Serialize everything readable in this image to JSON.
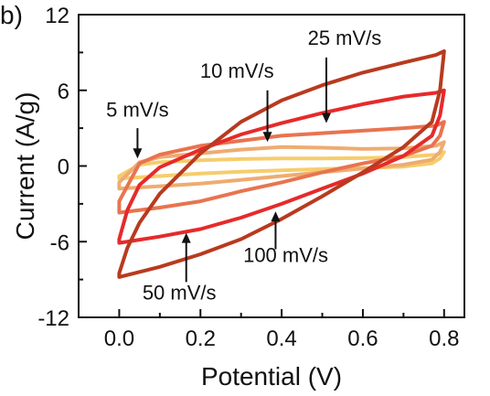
{
  "chart_data": {
    "type": "line",
    "panel_label": "b)",
    "xlabel": "Potential (V)",
    "ylabel": "Current (A/g)",
    "xlim": [
      -0.1,
      0.85
    ],
    "ylim": [
      -12,
      12
    ],
    "xticks": [
      0.0,
      0.2,
      0.4,
      0.6,
      0.8
    ],
    "xtick_labels": [
      "0.0",
      "0.2",
      "0.4",
      "0.6",
      "0.8"
    ],
    "yticks": [
      -12,
      -6,
      0,
      6,
      12
    ],
    "ytick_labels": [
      "-12",
      "-6",
      "0",
      "6",
      "12"
    ],
    "grid": false,
    "legend": "none",
    "series": [
      {
        "name": "5 mV/s",
        "color": "#f6cd6d",
        "upper": [
          [
            0.0,
            -0.8
          ],
          [
            0.05,
            0.1
          ],
          [
            0.1,
            0.3
          ],
          [
            0.2,
            0.45
          ],
          [
            0.3,
            0.55
          ],
          [
            0.4,
            0.6
          ],
          [
            0.5,
            0.6
          ],
          [
            0.6,
            0.62
          ],
          [
            0.7,
            0.7
          ],
          [
            0.78,
            0.9
          ],
          [
            0.8,
            1.1
          ]
        ],
        "lower": [
          [
            0.8,
            1.1
          ],
          [
            0.79,
            0.6
          ],
          [
            0.77,
            0.2
          ],
          [
            0.7,
            -0.05
          ],
          [
            0.6,
            -0.15
          ],
          [
            0.5,
            -0.25
          ],
          [
            0.4,
            -0.35
          ],
          [
            0.3,
            -0.45
          ],
          [
            0.2,
            -0.6
          ],
          [
            0.1,
            -0.8
          ],
          [
            0.0,
            -1.0
          ],
          [
            0.0,
            -0.8
          ]
        ]
      },
      {
        "name": "10 mV/s",
        "color": "#eeac70",
        "upper": [
          [
            0.0,
            -1.3
          ],
          [
            0.05,
            0.3
          ],
          [
            0.1,
            0.7
          ],
          [
            0.2,
            1.0
          ],
          [
            0.3,
            1.3
          ],
          [
            0.4,
            1.5
          ],
          [
            0.5,
            1.45
          ],
          [
            0.6,
            1.35
          ],
          [
            0.7,
            1.4
          ],
          [
            0.78,
            1.6
          ],
          [
            0.8,
            1.9
          ]
        ],
        "lower": [
          [
            0.8,
            1.9
          ],
          [
            0.79,
            1.1
          ],
          [
            0.77,
            0.5
          ],
          [
            0.7,
            0.1
          ],
          [
            0.6,
            -0.2
          ],
          [
            0.5,
            -0.5
          ],
          [
            0.4,
            -0.8
          ],
          [
            0.3,
            -1.1
          ],
          [
            0.2,
            -1.4
          ],
          [
            0.1,
            -1.6
          ],
          [
            0.0,
            -1.8
          ],
          [
            0.0,
            -1.3
          ]
        ]
      },
      {
        "name": "25 mV/s",
        "color": "#e8744f",
        "upper": [
          [
            0.0,
            -2.8
          ],
          [
            0.05,
            0.2
          ],
          [
            0.1,
            0.9
          ],
          [
            0.2,
            1.6
          ],
          [
            0.3,
            2.0
          ],
          [
            0.4,
            2.4
          ],
          [
            0.5,
            2.6
          ],
          [
            0.6,
            2.8
          ],
          [
            0.7,
            3.0
          ],
          [
            0.78,
            3.2
          ],
          [
            0.8,
            3.5
          ]
        ],
        "lower": [
          [
            0.8,
            3.5
          ],
          [
            0.79,
            2.4
          ],
          [
            0.77,
            1.6
          ],
          [
            0.7,
            0.8
          ],
          [
            0.6,
            0.2
          ],
          [
            0.5,
            -0.5
          ],
          [
            0.4,
            -1.3
          ],
          [
            0.3,
            -2.0
          ],
          [
            0.2,
            -2.8
          ],
          [
            0.1,
            -3.3
          ],
          [
            0.0,
            -3.7
          ],
          [
            0.0,
            -2.8
          ]
        ]
      },
      {
        "name": "50 mV/s",
        "color": "#e62a2a",
        "upper": [
          [
            0.0,
            -5.8
          ],
          [
            0.02,
            -3.5
          ],
          [
            0.05,
            -1.5
          ],
          [
            0.1,
            -0.1
          ],
          [
            0.2,
            1.3
          ],
          [
            0.3,
            2.5
          ],
          [
            0.4,
            3.4
          ],
          [
            0.5,
            4.2
          ],
          [
            0.6,
            4.9
          ],
          [
            0.7,
            5.5
          ],
          [
            0.78,
            5.8
          ],
          [
            0.8,
            6.0
          ]
        ],
        "lower": [
          [
            0.8,
            6.0
          ],
          [
            0.79,
            4.0
          ],
          [
            0.77,
            2.4
          ],
          [
            0.7,
            0.8
          ],
          [
            0.6,
            -0.6
          ],
          [
            0.5,
            -1.8
          ],
          [
            0.4,
            -3.0
          ],
          [
            0.3,
            -4.1
          ],
          [
            0.2,
            -5.0
          ],
          [
            0.1,
            -5.6
          ],
          [
            0.0,
            -6.1
          ],
          [
            0.0,
            -5.8
          ]
        ]
      },
      {
        "name": "100 mV/s",
        "color": "#b83a1f",
        "upper": [
          [
            0.0,
            -8.5
          ],
          [
            0.02,
            -6.5
          ],
          [
            0.05,
            -4.5
          ],
          [
            0.1,
            -2.2
          ],
          [
            0.2,
            1.0
          ],
          [
            0.3,
            3.5
          ],
          [
            0.4,
            5.2
          ],
          [
            0.5,
            6.4
          ],
          [
            0.6,
            7.4
          ],
          [
            0.7,
            8.2
          ],
          [
            0.78,
            8.8
          ],
          [
            0.8,
            9.1
          ]
        ],
        "lower": [
          [
            0.8,
            9.1
          ],
          [
            0.79,
            6.0
          ],
          [
            0.77,
            3.5
          ],
          [
            0.7,
            1.5
          ],
          [
            0.6,
            -0.5
          ],
          [
            0.5,
            -2.4
          ],
          [
            0.4,
            -4.2
          ],
          [
            0.3,
            -5.8
          ],
          [
            0.2,
            -7.0
          ],
          [
            0.1,
            -8.0
          ],
          [
            0.0,
            -8.8
          ],
          [
            0.0,
            -8.5
          ]
        ]
      }
    ],
    "annotations": [
      {
        "text": "5 mV/s",
        "label_x": 0.045,
        "label_y": 3.9,
        "arrow_from": [
          0.045,
          3.0
        ],
        "arrow_to": [
          0.045,
          0.6
        ]
      },
      {
        "text": "10 mV/s",
        "label_x": 0.29,
        "label_y": 7.0,
        "arrow_from": [
          0.365,
          6.0
        ],
        "arrow_to": [
          0.365,
          1.9
        ]
      },
      {
        "text": "25 mV/s",
        "label_x": 0.555,
        "label_y": 9.6,
        "arrow_from": [
          0.51,
          8.6
        ],
        "arrow_to": [
          0.51,
          3.4
        ]
      },
      {
        "text": "50 mV/s",
        "label_x": 0.148,
        "label_y": -10.6,
        "arrow_from": [
          0.165,
          -9.2
        ],
        "arrow_to": [
          0.165,
          -5.3
        ]
      },
      {
        "text": "100 mV/s",
        "label_x": 0.41,
        "label_y": -7.6,
        "arrow_from": [
          0.385,
          -6.6
        ],
        "arrow_to": [
          0.385,
          -3.6
        ]
      }
    ]
  }
}
